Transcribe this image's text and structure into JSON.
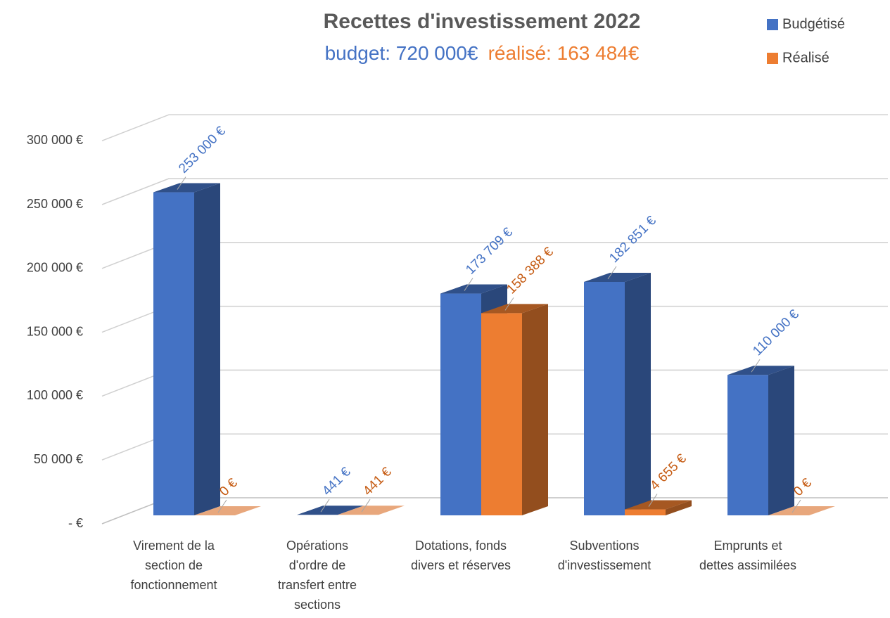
{
  "chart_data": {
    "type": "bar3d",
    "title": "Recettes d'investissement 2022",
    "subtitle": [
      {
        "text": "budget: 720 000€",
        "color": "#4472c4"
      },
      {
        "text": "réalisé: 163 484€",
        "color": "#ed7d31"
      }
    ],
    "categories": [
      "Virement de la\nsection de\nfonctionnement",
      "Opérations\nd'ordre de\ntransfert  entre\nsections",
      "Dotations, fonds\ndivers et réserves",
      "Subventions\nd'investissement",
      "Emprunts et\ndettes assimilées"
    ],
    "series": [
      {
        "name": "Budgétisé",
        "color": "#4472c4",
        "label_color": "#4472c4",
        "values": [
          253000,
          441,
          173709,
          182851,
          110000
        ],
        "value_labels": [
          "253 000 €",
          "441 €",
          "173 709 €",
          "182 851 €",
          "110 000 €"
        ]
      },
      {
        "name": "Réalisé",
        "color": "#ed7d31",
        "label_color": "#c55a11",
        "values": [
          0,
          441,
          158388,
          4655,
          0
        ],
        "value_labels": [
          "0 €",
          "441 €",
          "158 388 €",
          "4 655 €",
          "0 €"
        ]
      }
    ],
    "ylim": [
      0,
      300000
    ],
    "yticks": [
      {
        "value": 0,
        "label": "- €"
      },
      {
        "value": 50000,
        "label": "50 000 €"
      },
      {
        "value": 100000,
        "label": "100 000 €"
      },
      {
        "value": 150000,
        "label": "150 000 €"
      },
      {
        "value": 200000,
        "label": "200 000 €"
      },
      {
        "value": 250000,
        "label": "250 000 €"
      },
      {
        "value": 300000,
        "label": "300 000 €"
      }
    ],
    "grid": true,
    "legend": "top-right"
  }
}
